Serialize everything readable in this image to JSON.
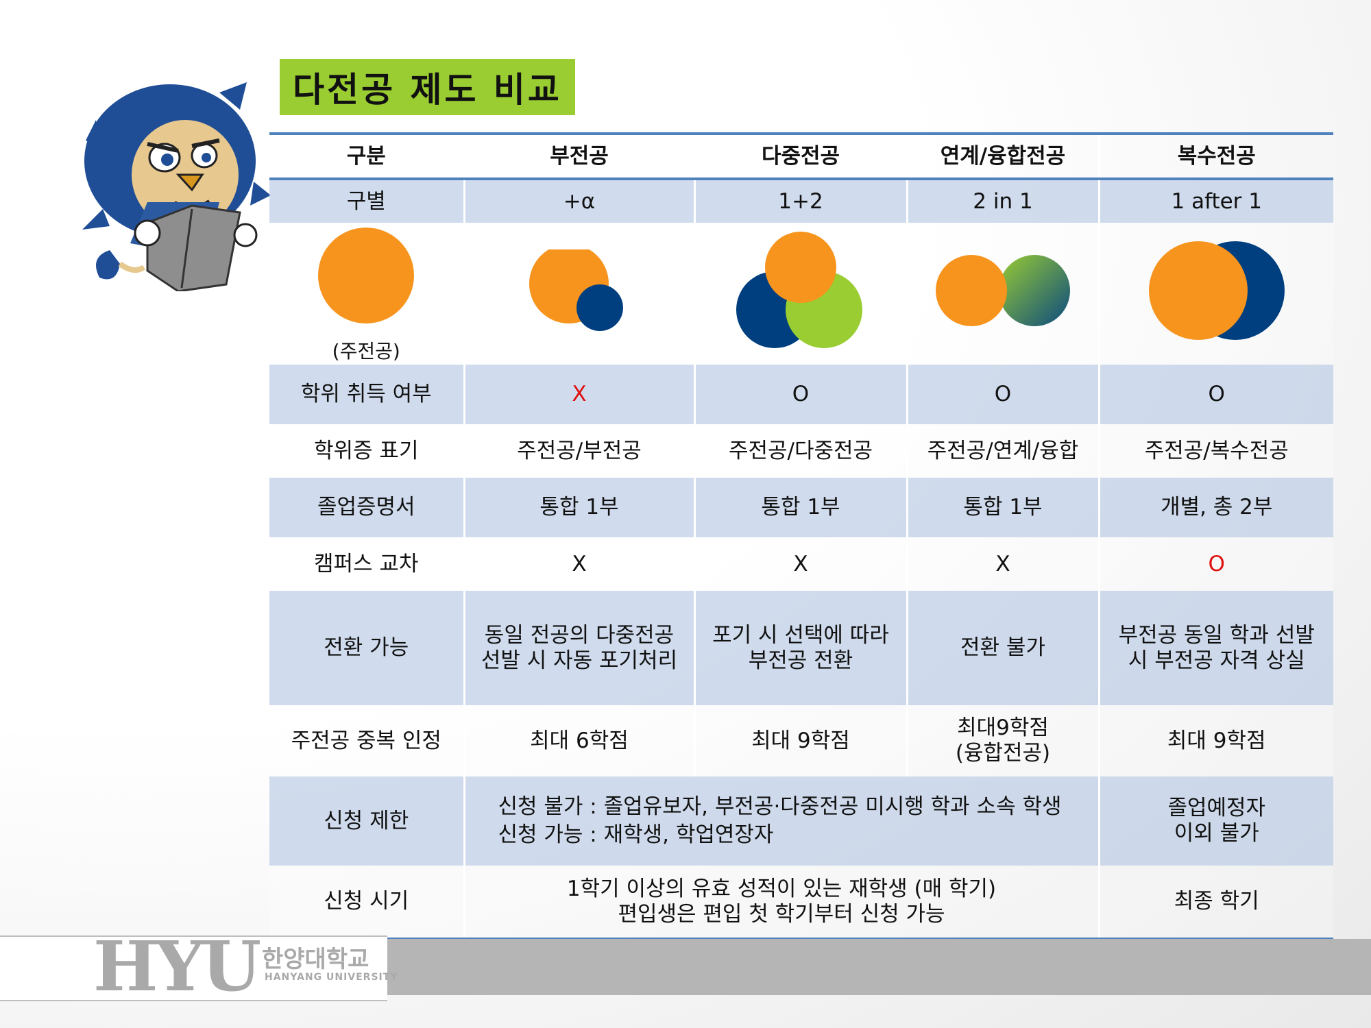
{
  "title": "다전공 제도 비교",
  "header": [
    "구분",
    "부전공",
    "다중전공",
    "연계/융합전공",
    "복수전공"
  ],
  "subtitle_row": [
    "구별",
    "+α",
    "1+2",
    "2 in 1",
    "1 after 1"
  ],
  "diagram_caption": "(주전공)",
  "colors": {
    "orange": "#f7941d",
    "navy": "#003f7f",
    "lime": "#9acd32",
    "accent_blue": "#4f81bd",
    "title_green": "#9acd32"
  },
  "rows": {
    "degree": {
      "label": "학위 취득 여부",
      "minor": "X",
      "multi": "O",
      "fusion": "O",
      "double": "O"
    },
    "notation": {
      "label": "학위증 표기",
      "minor": "주전공/부전공",
      "multi": "주전공/다중전공",
      "fusion": "주전공/연계/융합",
      "double": "주전공/복수전공"
    },
    "certificate": {
      "label": "졸업증명서",
      "minor": "통합 1부",
      "multi": "통합 1부",
      "fusion": "통합 1부",
      "double": "개별, 총 2부"
    },
    "campus": {
      "label": "캠퍼스 교차",
      "minor": "X",
      "multi": "X",
      "fusion": "X",
      "double": "O"
    },
    "conversion": {
      "label": "전환 가능",
      "minor": "동일 전공의 다중전공\n선발 시 자동 포기처리",
      "multi": "포기 시 선택에 따라 부전공 전환",
      "fusion": "전환 불가",
      "double": "부전공 동일 학과 선발 시 부전공 자격 상실"
    },
    "duplicate": {
      "label": "주전공 중복 인정",
      "minor": "최대 6학점",
      "multi": "최대 9학점",
      "fusion": "최대9학점\n(융합전공)",
      "double": "최대 9학점"
    },
    "limit": {
      "label": "신청 제한",
      "line1": "신청 불가 : 졸업유보자, 부전공·다중전공 미시행 학과 소속 학생",
      "line2": "신청 가능 : 재학생, 학업연장자",
      "double": "졸업예정자\n이외 불가"
    },
    "timing": {
      "label": "신청 시기",
      "line1": "1학기 이상의 유효 성적이 있는 재학생 (매 학기)",
      "line2": "편입생은 편입 첫 학기부터 신청 가능",
      "double": "최종 학기"
    }
  },
  "footer": {
    "logo_text": "HYU",
    "university_kor": "한양대학교",
    "university_eng": "HANYANG UNIVERSITY"
  }
}
